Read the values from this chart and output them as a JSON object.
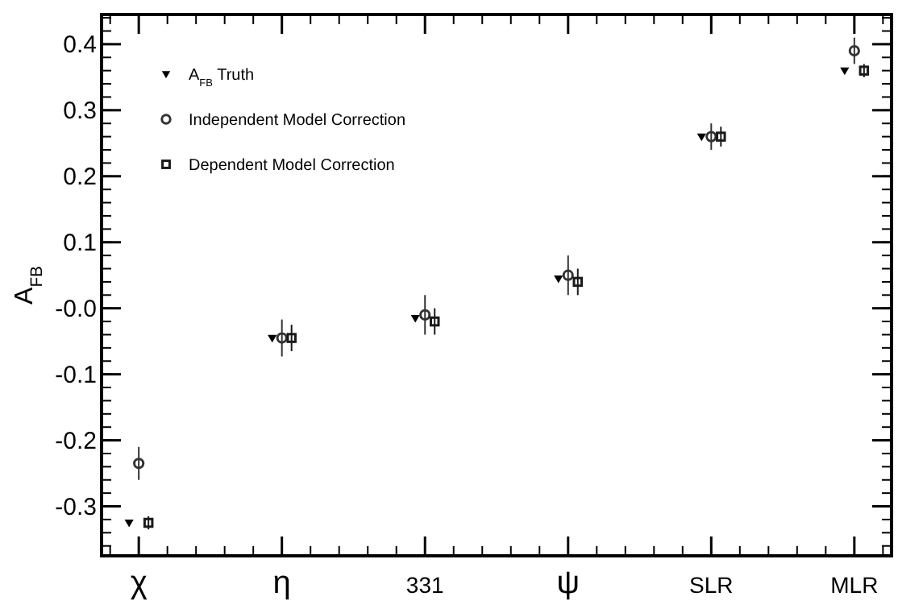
{
  "chart_data": {
    "type": "scatter",
    "ylabel": "A$_{FB}$",
    "categories": [
      "χ",
      "η",
      "331",
      "ψ",
      "SLR",
      "MLR"
    ],
    "ylim": [
      -0.375,
      0.445
    ],
    "yticks": [
      -0.3,
      -0.2,
      -0.1,
      {
        "value": 0,
        "label": "-0.0"
      },
      0.1,
      0.2,
      0.3,
      0.4
    ],
    "grid": false,
    "legend": "top left",
    "series": [
      {
        "name": "A$_{FB}$ Truth",
        "color": "#000000",
        "marker": "triangle",
        "values": [
          -0.325,
          -0.045,
          -0.015,
          0.045,
          0.26,
          0.36
        ]
      },
      {
        "name": "Independent Model Correction",
        "color": "#333333",
        "marker": "circle",
        "values": [
          -0.235,
          -0.045,
          -0.01,
          0.05,
          0.26,
          0.39
        ],
        "errors": [
          0.025,
          0.028,
          0.03,
          0.03,
          0.02,
          0.02
        ]
      },
      {
        "name": "Dependent Model Correction",
        "color": "#1a1a1a",
        "marker": "square",
        "values": [
          -0.325,
          -0.045,
          -0.02,
          0.04,
          0.26,
          0.36
        ],
        "errors": [
          0.01,
          0.02,
          0.02,
          0.02,
          0.015,
          0.01
        ]
      }
    ]
  }
}
